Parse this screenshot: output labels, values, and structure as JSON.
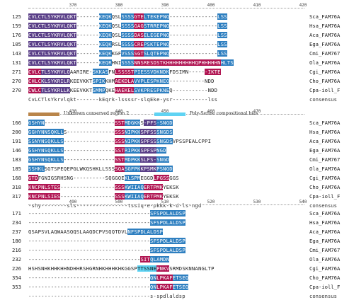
{
  "legend": {
    "items": [
      {
        "label": "Unknown conserved region 2",
        "color": "#b9854a"
      },
      {
        "label": "Poly-Serine compositional bias",
        "color": "#5fd3f3"
      }
    ]
  },
  "blocks": [
    {
      "ruler": [
        "370",
        "380",
        "390",
        "400",
        "410",
        "420"
      ],
      "rows": [
        {
          "num": "125",
          "seq": "CVLCTLSYKRVLQKT-------KEQKQSLSSSSGTELTEKEPNQ---------------LSS",
          "name": "Sca_FAM76A"
        },
        {
          "num": "159",
          "seq": "CVLCTLSYKRVLQKT-------KEQKQSLSSSSGAGSTRREPNQ---------------LSS",
          "name": "Hsa_FAM76A"
        },
        {
          "num": "176",
          "seq": "CVLCTLSYKRVLQKT-------KEQKQSLSSSSDASELEGEPNQ---------------LSS",
          "name": "Aca_FAM76A"
        },
        {
          "num": "105",
          "seq": "CVLCTLSYKRVLQKT-------KEQKRSLSSSSCREPSKTEPNQ---------------LSS",
          "name": "Ega_FAM76A"
        },
        {
          "num": "143",
          "seq": "CVLCTLSYKRVLQKT-------KEQKKGFVSSSSGTSLQTEPNQ---------------LSS",
          "name": "Cmi_FAM767"
        },
        {
          "num": "131",
          "seq": "CVLCTLSYKRVLQKT-------KEQRHNISSSSNNSRESDSTKHHHHHHHHHQPHHHHHNHLTS",
          "name": "Ola_FAM76A"
        },
        {
          "num": "271",
          "seq": "CVLCTLSYKRVLQAARIRE-SKKASFNLSSSSTPIESSVDKNDKFDSIMN------IKTE",
          "name": "Cgi_FAM76A"
        },
        {
          "num": "270",
          "seq": "CHLCKLSYKRILRKEEVKKTSPIKKHMAEKDLAVVPLESPKNEQ-----------NDD",
          "name": "Cho_FAM76A"
        },
        {
          "num": "270",
          "seq": "CWLCTLSYKRLLKKEEVKKTSMMPQKEHAEKELSVKPRESPKNEQ-----------NDD",
          "name": "Cpa-ioll_F"
        }
      ],
      "consensus": "CvLCTlsYkrvlqkt-------kEqrk-lssssr-slqEke-ysr-----------lss",
      "highlights": [
        [
          [
            0,
            15,
            "pur"
          ],
          [
            22,
            26,
            "blue"
          ],
          [
            29,
            33,
            "blue"
          ],
          [
            33,
            36,
            "mag"
          ],
          [
            36,
            44,
            "blue"
          ],
          [
            59,
            62,
            "blue"
          ]
        ],
        [
          [
            0,
            15,
            "pur"
          ],
          [
            22,
            26,
            "blue"
          ],
          [
            29,
            33,
            "blue"
          ],
          [
            33,
            36,
            "mag"
          ],
          [
            36,
            44,
            "blue"
          ],
          [
            59,
            62,
            "blue"
          ]
        ],
        [
          [
            0,
            15,
            "pur"
          ],
          [
            22,
            26,
            "blue"
          ],
          [
            29,
            33,
            "blue"
          ],
          [
            33,
            36,
            "mag"
          ],
          [
            36,
            44,
            "blue"
          ],
          [
            59,
            62,
            "blue"
          ]
        ],
        [
          [
            0,
            15,
            "pur"
          ],
          [
            22,
            26,
            "blue"
          ],
          [
            29,
            33,
            "blue"
          ],
          [
            33,
            36,
            "mag"
          ],
          [
            36,
            44,
            "blue"
          ],
          [
            59,
            62,
            "blue"
          ]
        ],
        [
          [
            0,
            15,
            "pur"
          ],
          [
            22,
            26,
            "blue"
          ],
          [
            29,
            33,
            "blue"
          ],
          [
            33,
            36,
            "mag"
          ],
          [
            36,
            44,
            "blue"
          ],
          [
            59,
            62,
            "blue"
          ]
        ],
        [
          [
            0,
            15,
            "pur"
          ],
          [
            22,
            26,
            "blue"
          ],
          [
            29,
            33,
            "blue"
          ],
          [
            33,
            36,
            "mag"
          ],
          [
            36,
            44,
            "mag"
          ],
          [
            44,
            60,
            "mag"
          ],
          [
            60,
            64,
            "blue"
          ]
        ],
        [
          [
            0,
            4,
            "mag"
          ],
          [
            4,
            13,
            "pur"
          ],
          [
            20,
            25,
            "blue"
          ],
          [
            27,
            33,
            "mag"
          ],
          [
            33,
            44,
            "blue"
          ],
          [
            55,
            60,
            "mag"
          ]
        ],
        [
          [
            0,
            4,
            "mag"
          ],
          [
            4,
            13,
            "pur"
          ],
          [
            20,
            24,
            "blue"
          ],
          [
            27,
            33,
            "mag"
          ],
          [
            33,
            44,
            "blue"
          ]
        ],
        [
          [
            0,
            4,
            "mag"
          ],
          [
            4,
            13,
            "pur"
          ],
          [
            20,
            24,
            "blue"
          ],
          [
            27,
            33,
            "mag"
          ],
          [
            33,
            44,
            "blue"
          ]
        ]
      ]
    },
    {
      "ruler": [
        "430",
        "440",
        "450",
        "460",
        "470"
      ],
      "rows": [
        {
          "num": "166",
          "seq": "GSHYN----------------------SSTMDGKKS-PFS-SNGD",
          "name": "Sca_FAM76A"
        },
        {
          "num": "200",
          "seq": "GGHYNNSQKLLS---------------SSSNIPKKSPFSSSNGDS",
          "name": "Hsa_FAM76A"
        },
        {
          "num": "191",
          "seq": "SSNYNSQKLLS----------------SSSNIPKKSPFSSSNGDSVPSSPEALCPPI",
          "name": "Aca_FAM76A"
        },
        {
          "num": "146",
          "seq": "GSHYNSQKLLS----------------SSTRIPKKSPFSPNGD",
          "name": "Ega_FAM76A"
        },
        {
          "num": "183",
          "seq": "GSHYNSQKLLS----------------SSTMDPKKSLFS-SNGD",
          "name": "Cmi_FAM767"
        },
        {
          "num": "185",
          "seq": "SSHKLSGTSPEQEPGLWKQSHKLLSSSSQASGFPKKPSMKPSNGD",
          "name": "Ola_FAM76A"
        },
        {
          "num": "168",
          "seq": "GTDFGNIGSRHSNG----------SQGGQEKLSPMEGGDLPGSSGGS",
          "name": "Cgi_FAM76A"
        },
        {
          "num": "318",
          "seq": "KNCPNLSTES-----------------SSSKWIIAQERTPMKYEKSK",
          "name": "Cho_FAM76A"
        },
        {
          "num": "317",
          "seq": "KNCPNLSIES-----------------SSSKWIIAQERTPMKYEKSK",
          "name": "Cpa-ioll_F"
        }
      ],
      "consensus": "-shy--------sls----------------tssiq-e-pkkk-k-d-ls-ngd",
      "highlights": [
        [
          [
            0,
            5,
            "blue"
          ],
          [
            27,
            30,
            "mag"
          ],
          [
            30,
            35,
            "blue"
          ],
          [
            36,
            40,
            "pur"
          ],
          [
            40,
            45,
            "blue"
          ]
        ],
        [
          [
            0,
            11,
            "blue"
          ],
          [
            27,
            30,
            "mag"
          ],
          [
            30,
            35,
            "blue"
          ],
          [
            35,
            40,
            "pur"
          ],
          [
            40,
            45,
            "blue"
          ]
        ],
        [
          [
            0,
            11,
            "blue"
          ],
          [
            27,
            30,
            "mag"
          ],
          [
            30,
            35,
            "blue"
          ],
          [
            35,
            40,
            "pur"
          ],
          [
            40,
            45,
            "blue"
          ]
        ],
        [
          [
            0,
            11,
            "blue"
          ],
          [
            27,
            30,
            "mag"
          ],
          [
            30,
            35,
            "blue"
          ],
          [
            35,
            40,
            "pur"
          ],
          [
            40,
            43,
            "blue"
          ]
        ],
        [
          [
            0,
            11,
            "blue"
          ],
          [
            27,
            30,
            "mag"
          ],
          [
            30,
            35,
            "blue"
          ],
          [
            35,
            40,
            "pur"
          ],
          [
            40,
            45,
            "blue"
          ]
        ],
        [
          [
            0,
            5,
            "blue"
          ],
          [
            27,
            30,
            "mag"
          ],
          [
            30,
            35,
            "blue"
          ],
          [
            35,
            40,
            "pur"
          ],
          [
            40,
            45,
            "blue"
          ]
        ],
        [
          [
            0,
            3,
            "mag"
          ],
          [
            30,
            35,
            "blue"
          ],
          [
            39,
            44,
            "mag"
          ]
        ],
        [
          [
            0,
            10,
            "mag"
          ],
          [
            27,
            30,
            "mag"
          ],
          [
            30,
            36,
            "blue"
          ],
          [
            36,
            42,
            "mag"
          ]
        ],
        [
          [
            0,
            10,
            "mag"
          ],
          [
            27,
            30,
            "mag"
          ],
          [
            30,
            36,
            "blue"
          ],
          [
            36,
            42,
            "mag"
          ]
        ]
      ]
    },
    {
      "ruler": [
        "490",
        "500",
        "510",
        "520",
        "530",
        "540"
      ],
      "rows": [
        {
          "num": "171",
          "seq": "--------------------------------------SFSPDLALDSP",
          "name": "Sca_FAM76A"
        },
        {
          "num": "234",
          "seq": "--------------------------------------SFSPDLALDSP",
          "name": "Hsa_FAM76A"
        },
        {
          "num": "237",
          "seq": "QSAPSVLAQWAASQQSLAAQDCPVSQQTDVLNFSPDLALDSP",
          "name": "Aca_FAM76A"
        },
        {
          "num": "180",
          "seq": "--------------------------------------SFSPDLALDSP",
          "name": "Ega_FAM76A"
        },
        {
          "num": "216",
          "seq": "--------------------------------------SFSPDLALDSP",
          "name": "Cmi_FAM767"
        },
        {
          "num": "232",
          "seq": "-----------------------------------SITQLAMDN",
          "name": "Ola_FAM76A"
        },
        {
          "num": "226",
          "seq": "HSHSNHKHHKHHNDHHRSHGRNHKHHHKHKGGSPTTSSNEPNKVSRMDSKNNANGLTP",
          "name": "Cgi_FAM76A"
        },
        {
          "num": "354",
          "seq": "--------------------------------------QNLPKAFETSEQ",
          "name": "Cho_FAM76A"
        },
        {
          "num": "353",
          "seq": "--------------------------------------QNLPKAFETSEQ",
          "name": "Cpa-ioll_F"
        }
      ],
      "consensus": "--------------------------------------s-spdlaldsp",
      "highlights": [
        [
          [
            38,
            49,
            "blue"
          ]
        ],
        [
          [
            38,
            49,
            "blue"
          ]
        ],
        [
          [
            31,
            42,
            "blue"
          ]
        ],
        [
          [
            38,
            49,
            "blue"
          ]
        ],
        [
          [
            38,
            49,
            "blue"
          ]
        ],
        [
          [
            35,
            38,
            "mag"
          ],
          [
            38,
            44,
            "blue"
          ]
        ],
        [
          [
            34,
            40,
            "cyan"
          ],
          [
            40,
            44,
            "mag"
          ]
        ],
        [
          [
            38,
            40,
            "blue"
          ],
          [
            40,
            45,
            "mag"
          ],
          [
            45,
            50,
            "blue"
          ]
        ],
        [
          [
            38,
            40,
            "blue"
          ],
          [
            40,
            45,
            "mag"
          ],
          [
            45,
            50,
            "blue"
          ]
        ]
      ]
    }
  ]
}
